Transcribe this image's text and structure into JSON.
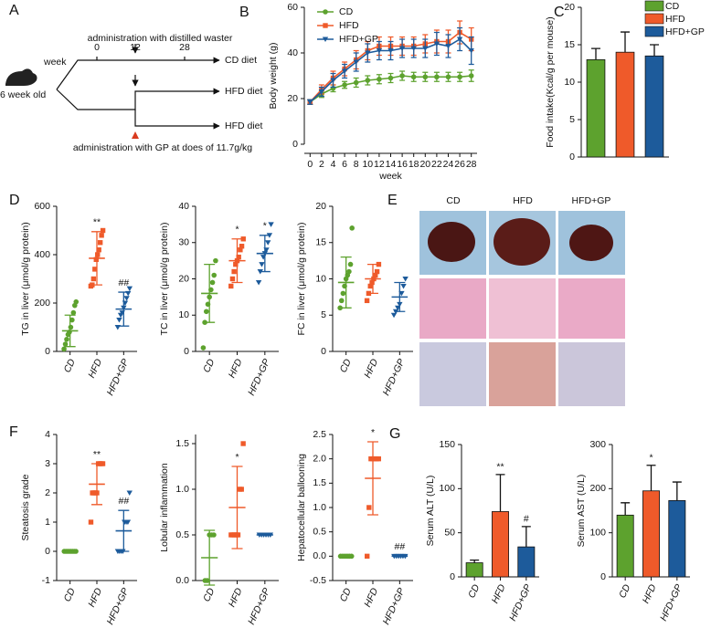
{
  "diagram": {
    "panel": "A",
    "unit": "week",
    "age": "6 week old",
    "timeline": [
      "0",
      "12",
      "28"
    ],
    "top_note": "administration with distilled waster",
    "bottom_note": "administration with GP at does of 11.7g/kg",
    "arms": [
      "CD diet",
      "HFD diet",
      "HFD diet"
    ]
  },
  "images": {
    "panel": "E",
    "columns": [
      "CD",
      "HFD",
      "HFD+GP"
    ]
  },
  "chart_data": [
    {
      "type": "line",
      "panel": "B",
      "x_label": "week",
      "y_label": "Body weight (g)",
      "x": [
        0,
        2,
        4,
        6,
        8,
        10,
        12,
        14,
        16,
        18,
        20,
        22,
        24,
        26,
        28
      ],
      "xlim": [
        -1,
        29
      ],
      "xticks": [
        0,
        2,
        4,
        6,
        8,
        10,
        12,
        14,
        16,
        18,
        20,
        22,
        24,
        26,
        28
      ],
      "ylim": [
        0,
        60
      ],
      "yticks": [
        0,
        20,
        40,
        60
      ],
      "series": [
        {
          "name": "CD",
          "color": "#5da22e",
          "values": [
            18.5,
            22,
            24.5,
            26,
            27,
            28,
            28.5,
            29,
            30,
            29.5,
            29.5,
            29.5,
            29.5,
            29.5,
            30
          ],
          "errors": [
            1,
            1.5,
            1.5,
            1.5,
            2,
            2,
            2,
            2,
            2,
            2,
            2,
            2,
            2,
            2,
            2.5
          ]
        },
        {
          "name": "HFD",
          "color": "#ef5a2a",
          "values": [
            18.5,
            24,
            29,
            33,
            37,
            41,
            43,
            43,
            43,
            43,
            44,
            45,
            45,
            49,
            46
          ],
          "errors": [
            1,
            2,
            3,
            3,
            4,
            4,
            4,
            4,
            4,
            4,
            4,
            5,
            5,
            5,
            5
          ]
        },
        {
          "name": "HFD+GP",
          "color": "#1d5b9b",
          "values": [
            18.5,
            23,
            28,
            32,
            36,
            40,
            41,
            41,
            42,
            42,
            42,
            44,
            43,
            46,
            41
          ],
          "errors": [
            1,
            2,
            3,
            3,
            4,
            4,
            4,
            4,
            4,
            4,
            4,
            5,
            5,
            5,
            6
          ]
        }
      ]
    },
    {
      "type": "bar",
      "panel": "C",
      "y_label": "Food intake(Kcal/g per mouse)",
      "categories": [
        null
      ],
      "ylim": [
        0,
        20
      ],
      "yticks": [
        0,
        5,
        10,
        15,
        20
      ],
      "series": [
        {
          "name": "CD",
          "color": "#5da22e",
          "values": [
            13
          ],
          "errors": [
            1.5
          ]
        },
        {
          "name": "HFD",
          "color": "#ef5a2a",
          "values": [
            14
          ],
          "errors": [
            2.7
          ]
        },
        {
          "name": "HFD+GP",
          "color": "#1d5b9b",
          "values": [
            13.5
          ],
          "errors": [
            1.5
          ]
        }
      ]
    },
    {
      "type": "dot",
      "panel": "D",
      "y_label": "TG in liver (μmol/g protein)",
      "categories": [
        "CD",
        "HFD",
        "HFD+GP"
      ],
      "ylim": [
        0,
        600
      ],
      "yticks": [
        0,
        200,
        400,
        600
      ],
      "annotations": [
        null,
        "**",
        "##"
      ],
      "groups": [
        {
          "color": "#5da22e",
          "points": [
            10,
            30,
            50,
            70,
            80,
            100,
            130,
            160,
            190,
            205
          ],
          "mean": 85,
          "sd": 65
        },
        {
          "color": "#ef5a2a",
          "points": [
            270,
            275,
            300,
            340,
            380,
            400,
            420,
            450,
            480,
            500
          ],
          "mean": 385,
          "sd": 110
        },
        {
          "color": "#1d5b9b",
          "points": [
            100,
            130,
            150,
            160,
            180,
            200,
            220,
            240,
            260
          ],
          "mean": 175,
          "sd": 70
        }
      ]
    },
    {
      "type": "dot",
      "y_label": "TC in liver (μmol/g protein)",
      "categories": [
        "CD",
        "HFD",
        "HFD+GP"
      ],
      "ylim": [
        0,
        40
      ],
      "yticks": [
        0,
        10,
        20,
        30,
        40
      ],
      "annotations": [
        null,
        "*",
        "*"
      ],
      "groups": [
        {
          "color": "#5da22e",
          "points": [
            1,
            8,
            11,
            13,
            15,
            17,
            19,
            21,
            25
          ],
          "mean": 16,
          "sd": 8
        },
        {
          "color": "#ef5a2a",
          "points": [
            18,
            20,
            22,
            24,
            25,
            26,
            28,
            29,
            31
          ],
          "mean": 25,
          "sd": 6
        },
        {
          "color": "#1d5b9b",
          "points": [
            19,
            22,
            24,
            26,
            27,
            28,
            30,
            32,
            35
          ],
          "mean": 27,
          "sd": 5
        }
      ]
    },
    {
      "type": "dot",
      "y_label": "FC in liver (μmol/g protein)",
      "categories": [
        "CD",
        "HFD",
        "HFD+GP"
      ],
      "ylim": [
        0,
        20
      ],
      "yticks": [
        0,
        5,
        10,
        15,
        20
      ],
      "annotations": [
        null,
        null,
        null
      ],
      "groups": [
        {
          "color": "#5da22e",
          "points": [
            6,
            7,
            8,
            9,
            10,
            10.5,
            11,
            12,
            17
          ],
          "mean": 9.5,
          "sd": 3.5
        },
        {
          "color": "#ef5a2a",
          "points": [
            7,
            8,
            9,
            9.5,
            10,
            10.5,
            11,
            12
          ],
          "mean": 10,
          "sd": 2
        },
        {
          "color": "#1d5b9b",
          "points": [
            5,
            5.5,
            6,
            6.5,
            8,
            9,
            10
          ],
          "mean": 7.5,
          "sd": 2
        }
      ]
    },
    {
      "type": "dot",
      "panel": "F",
      "y_label": "Steatosis grade",
      "categories": [
        "CD",
        "HFD",
        "HFD+GP"
      ],
      "ylim": [
        -1,
        4
      ],
      "yticks": [
        -1,
        0,
        1,
        2,
        3,
        4
      ],
      "annotations": [
        null,
        "**",
        "##"
      ],
      "groups": [
        {
          "color": "#5da22e",
          "points": [
            0,
            0,
            0,
            0,
            0,
            0,
            0,
            0
          ],
          "mean": 0,
          "sd": 0
        },
        {
          "color": "#ef5a2a",
          "points": [
            1,
            2,
            2,
            2,
            2,
            3,
            3,
            3,
            3
          ],
          "mean": 2.3,
          "sd": 0.7
        },
        {
          "color": "#1d5b9b",
          "points": [
            0,
            0,
            0,
            0,
            1,
            1,
            1,
            2
          ],
          "mean": 0.7,
          "sd": 0.7
        }
      ]
    },
    {
      "type": "dot",
      "y_label": "Lobular inflammation",
      "categories": [
        "CD",
        "HFD",
        "HFD+GP"
      ],
      "ylim": [
        0,
        1.6
      ],
      "yticks": [
        {
          "value": 0,
          "label": "0.0"
        },
        0.5,
        {
          "value": 1,
          "label": "1.0"
        },
        1.5
      ],
      "annotations": [
        null,
        "*",
        null
      ],
      "groups": [
        {
          "color": "#5da22e",
          "points": [
            0,
            0,
            0.5,
            0.5,
            0.5
          ],
          "mean": 0.25,
          "sd": 0.3
        },
        {
          "color": "#ef5a2a",
          "points": [
            0.5,
            0.5,
            0.5,
            0.5,
            0.5,
            1,
            1,
            1.5
          ],
          "mean": 0.8,
          "sd": 0.45
        },
        {
          "color": "#1d5b9b",
          "points": [
            0.5,
            0.5,
            0.5,
            0.5,
            0.5,
            0.5
          ],
          "mean": 0.5,
          "sd": 0
        }
      ]
    },
    {
      "type": "dot",
      "y_label": "Hepatocellular ballooning",
      "categories": [
        "CD",
        "HFD",
        "HFD+GP"
      ],
      "ylim": [
        -0.5,
        2.5
      ],
      "yticks": [
        -0.5,
        {
          "value": 0,
          "label": "0.0"
        },
        0.5,
        {
          "value": 1,
          "label": "1.0"
        },
        1.5,
        {
          "value": 2,
          "label": "2.0"
        },
        2.5
      ],
      "annotations": [
        null,
        "*",
        "##"
      ],
      "groups": [
        {
          "color": "#5da22e",
          "points": [
            0,
            0,
            0,
            0,
            0,
            0
          ],
          "mean": 0,
          "sd": 0
        },
        {
          "color": "#ef5a2a",
          "points": [
            0,
            1,
            2,
            2,
            2,
            2,
            2
          ],
          "mean": 1.6,
          "sd": 0.75
        },
        {
          "color": "#1d5b9b",
          "points": [
            0,
            0,
            0,
            0,
            0,
            0
          ],
          "mean": 0,
          "sd": 0
        }
      ]
    },
    {
      "type": "bar",
      "panel": "G",
      "y_label": "Serum ALT (U/L)",
      "categories": [
        "CD",
        "HFD",
        "HFD+GP"
      ],
      "ylim": [
        0,
        150
      ],
      "yticks": [
        0,
        50,
        100,
        150
      ],
      "annotations": [
        null,
        "**",
        "#"
      ],
      "values": [
        16,
        74,
        34
      ],
      "errors": [
        3,
        42,
        23
      ],
      "colors": [
        "#5da22e",
        "#ef5a2a",
        "#1d5b9b"
      ]
    },
    {
      "type": "bar",
      "y_label": "Serum AST (U/L)",
      "categories": [
        "CD",
        "HFD",
        "HFD+GP"
      ],
      "ylim": [
        0,
        300
      ],
      "yticks": [
        0,
        100,
        200,
        300
      ],
      "annotations": [
        null,
        "*",
        null
      ],
      "values": [
        140,
        195,
        173
      ],
      "errors": [
        28,
        58,
        42
      ],
      "colors": [
        "#5da22e",
        "#ef5a2a",
        "#1d5b9b"
      ]
    }
  ]
}
